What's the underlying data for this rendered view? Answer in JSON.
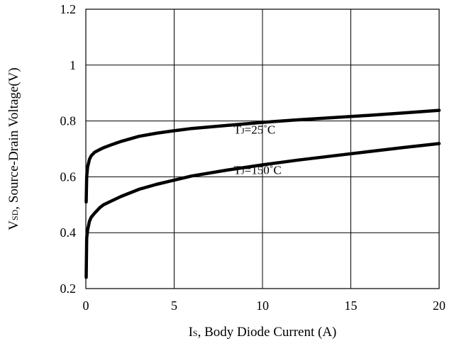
{
  "chart_data": {
    "type": "line",
    "xlabel": "IS, Body Diode Current (A)",
    "ylabel": "VSD, Source-Drain Voltage(V)",
    "xlim": [
      0,
      20
    ],
    "ylim": [
      0.2,
      1.2
    ],
    "xticks": [
      0,
      5,
      10,
      15,
      20
    ],
    "xtick_labels": [
      "0",
      "5",
      "10",
      "15",
      "20"
    ],
    "yticks": [
      0.2,
      0.4,
      0.6,
      0.8,
      1.0,
      1.2
    ],
    "ytick_labels": [
      "0.2",
      "0.4",
      "0.6",
      "0.8",
      "1",
      "1.2"
    ],
    "grid": true,
    "series": [
      {
        "name": "TJ=25°C",
        "x": [
          0.02,
          0.05,
          0.1,
          0.2,
          0.3,
          0.5,
          0.8,
          1,
          1.5,
          2,
          3,
          4,
          5,
          6,
          8,
          10,
          12,
          14,
          16,
          18,
          20
        ],
        "y": [
          0.51,
          0.6,
          0.635,
          0.662,
          0.675,
          0.688,
          0.698,
          0.704,
          0.716,
          0.727,
          0.745,
          0.756,
          0.765,
          0.773,
          0.784,
          0.795,
          0.804,
          0.812,
          0.82,
          0.829,
          0.838
        ]
      },
      {
        "name": "TJ=150°C",
        "x": [
          0.02,
          0.05,
          0.1,
          0.2,
          0.3,
          0.5,
          0.8,
          1,
          1.5,
          2,
          3,
          4,
          5,
          6,
          8,
          10,
          12,
          14,
          16,
          18,
          20
        ],
        "y": [
          0.24,
          0.38,
          0.41,
          0.44,
          0.455,
          0.47,
          0.49,
          0.5,
          0.515,
          0.53,
          0.555,
          0.573,
          0.588,
          0.603,
          0.624,
          0.643,
          0.66,
          0.675,
          0.69,
          0.705,
          0.719
        ]
      }
    ],
    "annotations": [
      {
        "text": "TJ=25°C",
        "main": "T",
        "sub": "J",
        "rest": "=25˚C",
        "x": 9.5,
        "y": 0.77
      },
      {
        "text": "TJ=150°C",
        "main": "T",
        "sub": "J",
        "rest": "=150˚C",
        "x": 9.5,
        "y": 0.625
      }
    ],
    "xlabel_parts": {
      "main": "I",
      "sub": "S",
      "rest": ", Body Diode Current (A)"
    },
    "ylabel_parts": {
      "main": "V",
      "sub": "SD",
      "rest": ", Source-Drain Voltage(V)"
    }
  }
}
